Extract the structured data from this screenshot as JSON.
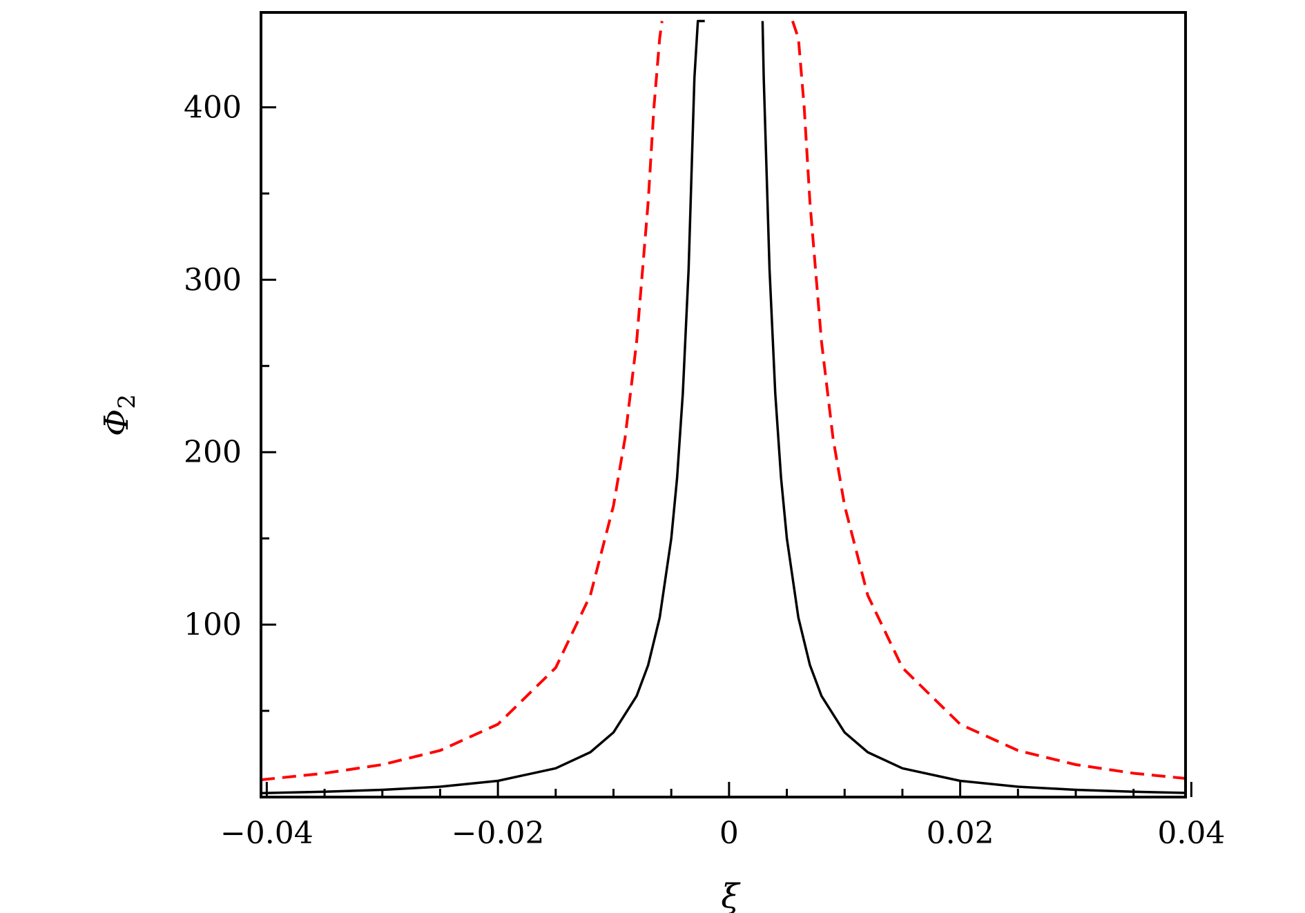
{
  "chart_data": {
    "type": "line",
    "title": "",
    "xlabel": "ξ",
    "ylabel": {
      "symbol": "Φ",
      "subscript": "2"
    },
    "xlim": [
      -0.0405,
      0.0395
    ],
    "ylim": [
      0,
      455
    ],
    "x_ticks": [
      {
        "value": -0.04,
        "label": "−0.04"
      },
      {
        "value": -0.02,
        "label": "−0.02"
      },
      {
        "value": 0,
        "label": "0"
      },
      {
        "value": 0.02,
        "label": "0.02"
      },
      {
        "value": 0.04,
        "label": "0.04"
      }
    ],
    "x_minor_ticks": [
      -0.035,
      -0.03,
      -0.025,
      -0.015,
      -0.01,
      -0.005,
      0.005,
      0.01,
      0.015,
      0.025,
      0.03,
      0.035
    ],
    "y_ticks": [
      {
        "value": 100,
        "label": "100"
      },
      {
        "value": 200,
        "label": "200"
      },
      {
        "value": 300,
        "label": "300"
      },
      {
        "value": 400,
        "label": "400"
      }
    ],
    "y_minor_ticks": [
      50,
      150,
      250,
      350
    ],
    "grid": false,
    "series": [
      {
        "style": "solid",
        "color": "#000000",
        "x": [
          -0.0405,
          -0.035,
          -0.03,
          -0.025,
          -0.02,
          -0.015,
          -0.012,
          -0.01,
          -0.008,
          -0.007,
          -0.006,
          -0.005,
          -0.0045,
          -0.004,
          -0.0035,
          -0.003,
          -0.0027,
          -0.0025,
          -0.0023,
          -0.0021
        ],
        "y": [
          2.3,
          3.1,
          4.2,
          6.0,
          9.4,
          16.7,
          26,
          37.5,
          58.6,
          76.5,
          104,
          150,
          185,
          234,
          306,
          417,
          450,
          450,
          450,
          450
        ]
      },
      {
        "style": "solid",
        "color": "#000000",
        "x": [
          0.0029,
          0.003,
          0.0035,
          0.004,
          0.0045,
          0.005,
          0.006,
          0.007,
          0.008,
          0.01,
          0.012,
          0.015,
          0.02,
          0.025,
          0.03,
          0.035,
          0.0395
        ],
        "y": [
          450,
          417,
          306,
          234,
          185,
          150,
          104,
          76.5,
          58.6,
          37.5,
          26,
          16.7,
          9.4,
          6.0,
          4.2,
          3.1,
          2.4
        ]
      },
      {
        "style": "dashed",
        "color": "#ff0000",
        "x": [
          -0.0405,
          -0.035,
          -0.03,
          -0.025,
          -0.02,
          -0.015,
          -0.012,
          -0.01,
          -0.009,
          -0.008,
          -0.007,
          -0.0065,
          -0.006,
          -0.0058
        ],
        "y": [
          10,
          13.8,
          18.8,
          27.0,
          42.2,
          75.0,
          117,
          169,
          208,
          264,
          345,
          400,
          440,
          450
        ]
      },
      {
        "style": "dashed",
        "color": "#ff0000",
        "x": [
          0.0055,
          0.006,
          0.0065,
          0.007,
          0.008,
          0.009,
          0.01,
          0.012,
          0.015,
          0.02,
          0.025,
          0.03,
          0.035,
          0.0395
        ],
        "y": [
          450,
          440,
          400,
          345,
          264,
          208,
          169,
          117,
          75.0,
          42.2,
          27.0,
          18.8,
          13.8,
          10.8
        ]
      }
    ]
  }
}
